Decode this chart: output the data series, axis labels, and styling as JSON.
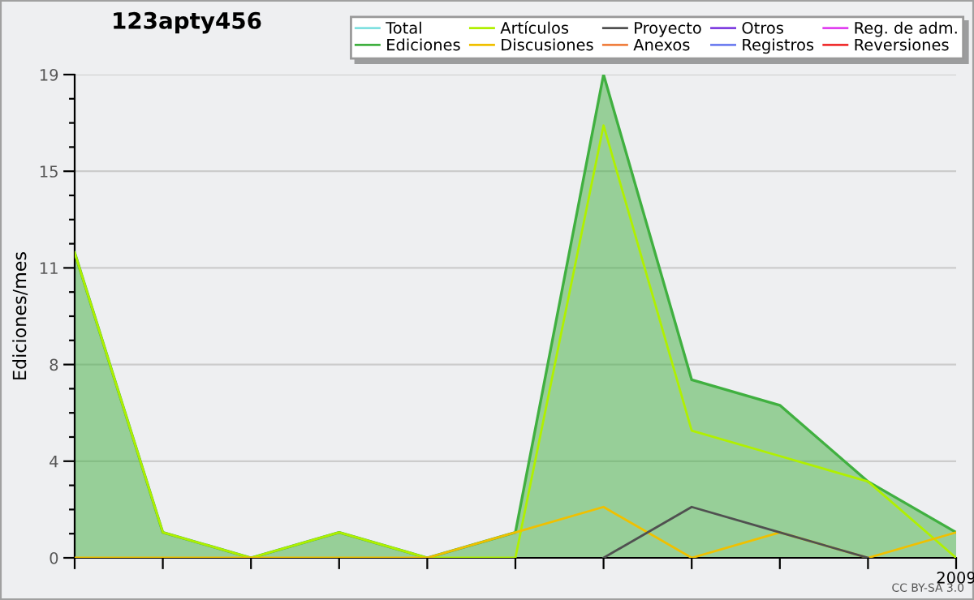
{
  "chart_data": {
    "type": "line",
    "title": "123apty456",
    "ylabel": "Ediciones/mes",
    "categories": [
      null,
      null,
      null,
      null,
      null,
      null,
      null,
      null,
      null,
      null,
      "2009"
    ],
    "series": [
      {
        "name": "Total",
        "color": "#80e0e0",
        "values": [
          null,
          null,
          null,
          null,
          null,
          null,
          null,
          null,
          null,
          null,
          null
        ]
      },
      {
        "name": "Ediciones",
        "color": "#40b040",
        "type": "area",
        "values": [
          12,
          1,
          0,
          1,
          0,
          1,
          19,
          7,
          6,
          3,
          1
        ]
      },
      {
        "name": "Artículos",
        "color": "#b0f000",
        "values": [
          12,
          1,
          0,
          1,
          0,
          0,
          17,
          5,
          4,
          3,
          0
        ]
      },
      {
        "name": "Discusiones",
        "color": "#f0c000",
        "values": [
          0,
          0,
          0,
          0,
          0,
          1,
          2,
          0,
          1,
          0,
          1
        ]
      },
      {
        "name": "Proyecto",
        "color": "#505050",
        "values": [
          null,
          null,
          null,
          null,
          null,
          null,
          0,
          2,
          1,
          0,
          null
        ]
      },
      {
        "name": "Anexos",
        "color": "#f08040",
        "values": [
          null,
          null,
          null,
          null,
          null,
          null,
          null,
          null,
          null,
          null,
          null
        ]
      },
      {
        "name": "Otros",
        "color": "#8040e0",
        "values": [
          null,
          null,
          null,
          null,
          null,
          null,
          null,
          null,
          null,
          null,
          null
        ]
      },
      {
        "name": "Registros",
        "color": "#7080f0",
        "values": [
          null,
          null,
          null,
          null,
          null,
          null,
          null,
          null,
          null,
          null,
          null
        ]
      },
      {
        "name": "Reg. de adm.",
        "color": "#e040f0",
        "values": [
          null,
          null,
          null,
          null,
          null,
          null,
          null,
          null,
          null,
          null,
          null
        ]
      },
      {
        "name": "Reversiones",
        "color": "#f03030",
        "values": [
          null,
          null,
          null,
          null,
          null,
          null,
          null,
          null,
          null,
          null,
          null
        ]
      }
    ],
    "ylim": [
      0,
      19
    ],
    "yticks": [
      0,
      {
        "value": 0.95,
        "label": null
      },
      {
        "value": 1.9,
        "label": null
      },
      {
        "value": 2.85,
        "label": null
      },
      {
        "value": 3.8,
        "label": "4"
      },
      {
        "value": 4.75,
        "label": null
      },
      {
        "value": 5.7,
        "label": null
      },
      {
        "value": 6.65,
        "label": null
      },
      {
        "value": 7.6,
        "label": "8"
      },
      {
        "value": 8.55,
        "label": null
      },
      {
        "value": 9.5,
        "label": null
      },
      {
        "value": 10.45,
        "label": null
      },
      {
        "value": 11.4,
        "label": "11"
      },
      {
        "value": 12.35,
        "label": null
      },
      {
        "value": 13.3,
        "label": null
      },
      {
        "value": 14.25,
        "label": null
      },
      {
        "value": 15.2,
        "label": "15"
      },
      {
        "value": 16.15,
        "label": null
      },
      {
        "value": 17.1,
        "label": null
      },
      {
        "value": 18.05,
        "label": null
      },
      19
    ],
    "grid": "y",
    "legend": "top right",
    "marker": "none",
    "line_style": "solid",
    "annotations": [
      "CC BY-SA 3.0"
    ]
  }
}
